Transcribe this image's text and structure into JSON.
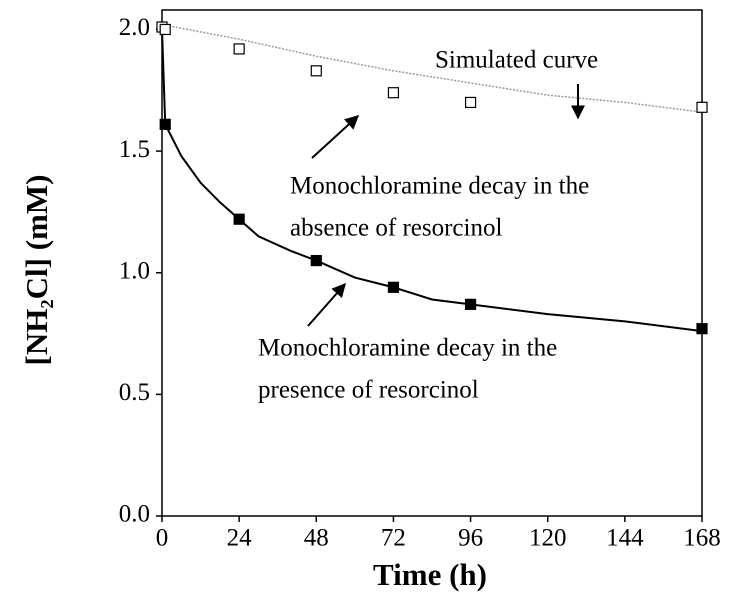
{
  "chart_data": {
    "type": "line",
    "xlabel": "Time (h)",
    "ylabel": "[NH₂Cl] (mM)",
    "xlim": [
      0,
      168
    ],
    "xticks": [
      0,
      24,
      48,
      72,
      96,
      120,
      144,
      168
    ],
    "ylim": [
      0,
      2.08
    ],
    "yticks": [
      {
        "value": 0,
        "label": "0.0"
      },
      0.5,
      {
        "value": 1,
        "label": "1.0"
      },
      1.5,
      {
        "value": 2,
        "label": "2.0"
      }
    ],
    "annotations": [
      "Simulated curve",
      "Monochloramine decay in the",
      "absence of resorcinol",
      "Monochloramine decay in the",
      "presence of resorcinol"
    ],
    "series": [
      {
        "mode": "line",
        "color": "#999999",
        "dash": "dotted",
        "x": [
          0,
          24,
          48,
          72,
          96,
          120,
          144,
          168
        ],
        "values": [
          2.02,
          1.96,
          1.89,
          1.83,
          1.78,
          1.73,
          1.7,
          1.66
        ]
      },
      {
        "mode": "line",
        "color": "#000000",
        "x": [
          0,
          1,
          6,
          12,
          18,
          24,
          30,
          40,
          48,
          60,
          72,
          84,
          96,
          120,
          144,
          168
        ],
        "values": [
          2.0,
          1.61,
          1.48,
          1.37,
          1.29,
          1.22,
          1.15,
          1.09,
          1.05,
          0.98,
          0.94,
          0.89,
          0.87,
          0.83,
          0.8,
          0.76
        ]
      },
      {
        "mode": "markers",
        "marker": "open-square",
        "color": "#000000",
        "x": [
          0,
          1,
          24,
          48,
          72,
          96,
          168
        ],
        "values": [
          2.01,
          2.0,
          1.92,
          1.83,
          1.74,
          1.7,
          1.68
        ]
      },
      {
        "mode": "markers",
        "marker": "filled-square",
        "color": "#000000",
        "x": [
          1,
          24,
          48,
          72,
          96,
          168
        ],
        "values": [
          1.61,
          1.22,
          1.05,
          0.94,
          0.87,
          0.77
        ]
      }
    ]
  }
}
